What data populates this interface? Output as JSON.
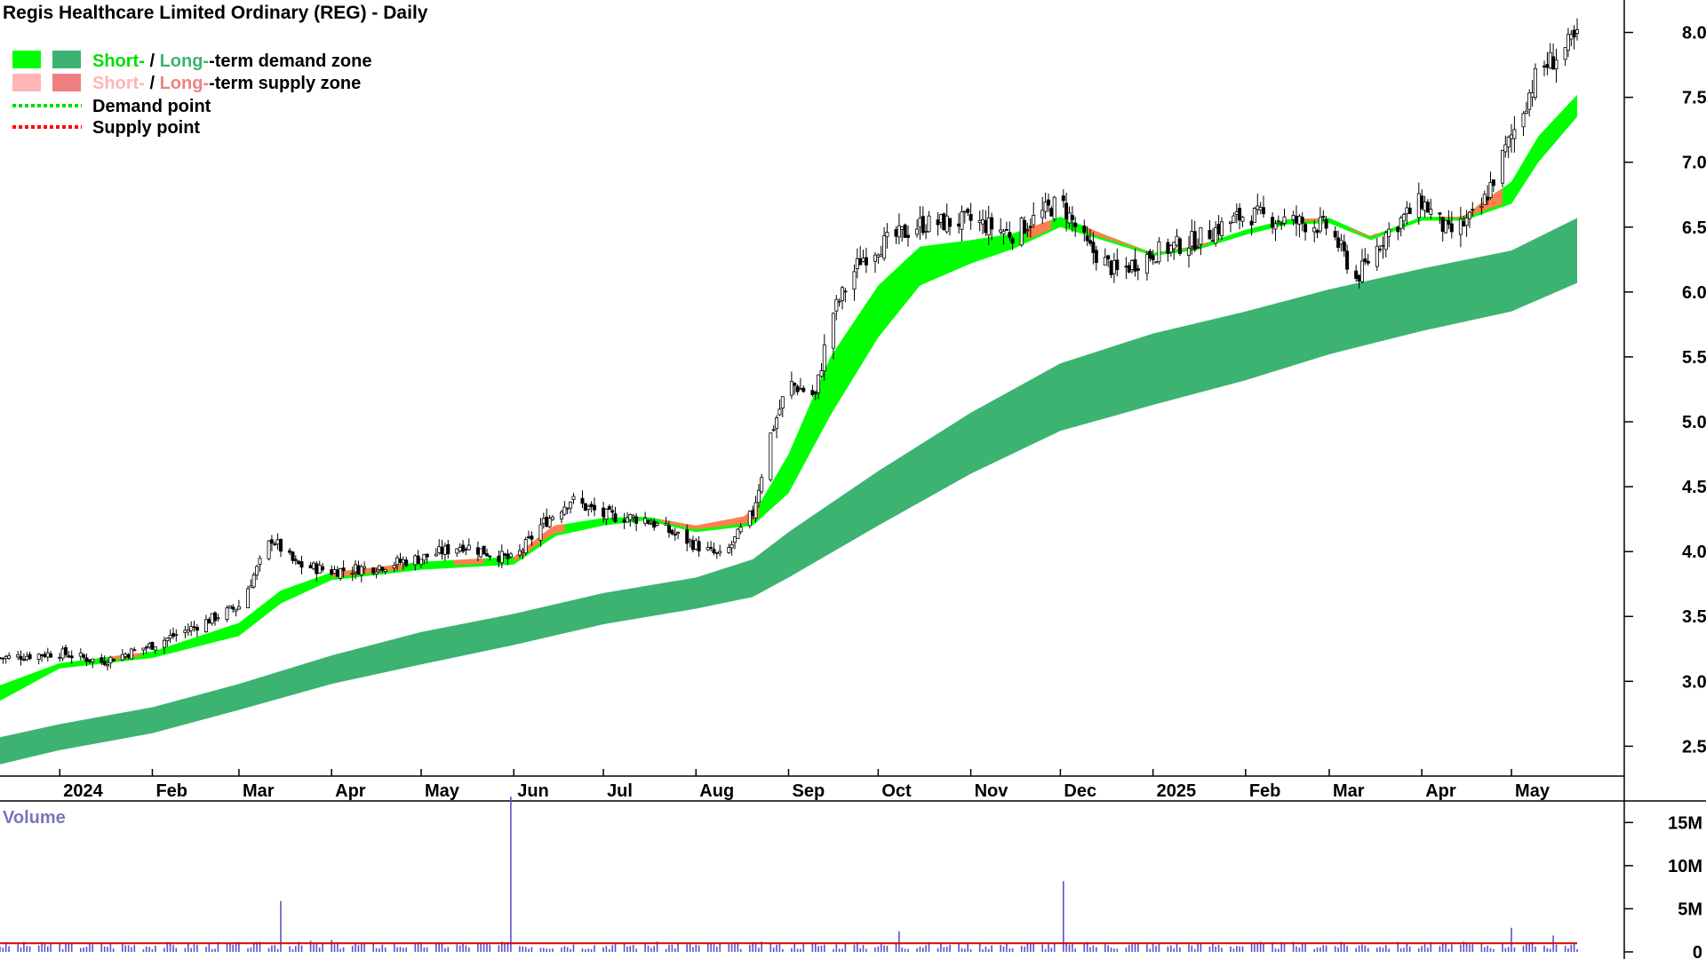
{
  "title": "Regis Healthcare Limited Ordinary (REG) - Daily",
  "legend": {
    "items": [
      {
        "short": "Short-",
        "sep": " / ",
        "long": "Long-",
        "rest": "-term demand zone",
        "short_color": "#00ff00",
        "long_color": "#3cb371"
      },
      {
        "short": "Short-",
        "sep": " / ",
        "long": "Long-",
        "rest": "-term supply zone",
        "short_color": "#ffb6b6",
        "long_color": "#f08080"
      },
      {
        "label": "Demand point",
        "color": "#00dd00"
      },
      {
        "label": "Supply point",
        "color": "#ff0000"
      }
    ]
  },
  "colors": {
    "short_demand": "#00ff00",
    "long_demand": "#3cb371",
    "short_supply": "#ff7f50",
    "candle": "#000000",
    "volume_bar": "#5555cc",
    "volume_avg": "#dd0000",
    "volume_label": "#7777bb"
  },
  "chart_data": {
    "type": "line",
    "price_axis": {
      "ticks": [
        "2.5",
        "3.0",
        "3.5",
        "4.0",
        "4.5",
        "5.0",
        "5.5",
        "6.0",
        "6.5",
        "7.0",
        "7.5",
        "8.0"
      ],
      "ylim": [
        2.27,
        8.25
      ]
    },
    "x_axis": {
      "labels": [
        "2024",
        "Feb",
        "Mar",
        "Apr",
        "May",
        "Jun",
        "Jul",
        "Aug",
        "Sep",
        "Oct",
        "Nov",
        "Dec",
        "2025",
        "Feb",
        "Mar",
        "Apr",
        "May"
      ],
      "dates": [
        "2024-01-01",
        "2024-02-01",
        "2024-03-01",
        "2024-04-01",
        "2024-05-01",
        "2024-06-01",
        "2024-07-01",
        "2024-08-01",
        "2024-09-01",
        "2024-10-01",
        "2024-11-01",
        "2024-12-01",
        "2025-01-01",
        "2025-02-01",
        "2025-03-01",
        "2025-04-01",
        "2025-05-01"
      ],
      "range": [
        "2023-12-12",
        "2025-05-23"
      ]
    },
    "price_close": [
      [
        "2023-12-12",
        3.18
      ],
      [
        "2024-01-01",
        3.22
      ],
      [
        "2024-01-15",
        3.15
      ],
      [
        "2024-02-01",
        3.28
      ],
      [
        "2024-02-15",
        3.42
      ],
      [
        "2024-03-01",
        3.58
      ],
      [
        "2024-03-12",
        4.1
      ],
      [
        "2024-03-20",
        3.9
      ],
      [
        "2024-04-01",
        3.85
      ],
      [
        "2024-04-15",
        3.88
      ],
      [
        "2024-05-01",
        3.95
      ],
      [
        "2024-05-15",
        4.05
      ],
      [
        "2024-06-01",
        3.93
      ],
      [
        "2024-06-10",
        4.2
      ],
      [
        "2024-06-20",
        4.4
      ],
      [
        "2024-07-01",
        4.28
      ],
      [
        "2024-07-15",
        4.25
      ],
      [
        "2024-08-01",
        4.05
      ],
      [
        "2024-08-10",
        3.95
      ],
      [
        "2024-08-20",
        4.3
      ],
      [
        "2024-08-26",
        4.9
      ],
      [
        "2024-09-01",
        5.3
      ],
      [
        "2024-09-10",
        5.2
      ],
      [
        "2024-09-15",
        5.8
      ],
      [
        "2024-09-25",
        6.25
      ],
      [
        "2024-10-01",
        6.35
      ],
      [
        "2024-10-15",
        6.52
      ],
      [
        "2024-11-01",
        6.55
      ],
      [
        "2024-11-15",
        6.45
      ],
      [
        "2024-12-01",
        6.7
      ],
      [
        "2024-12-10",
        6.35
      ],
      [
        "2024-12-20",
        6.15
      ],
      [
        "2025-01-01",
        6.3
      ],
      [
        "2025-01-15",
        6.4
      ],
      [
        "2025-02-01",
        6.6
      ],
      [
        "2025-02-15",
        6.55
      ],
      [
        "2025-03-01",
        6.5
      ],
      [
        "2025-03-10",
        6.1
      ],
      [
        "2025-03-20",
        6.45
      ],
      [
        "2025-04-01",
        6.7
      ],
      [
        "2025-04-10",
        6.45
      ],
      [
        "2025-04-20",
        6.6
      ],
      [
        "2025-05-01",
        7.2
      ],
      [
        "2025-05-10",
        7.7
      ],
      [
        "2025-05-18",
        7.85
      ],
      [
        "2025-05-23",
        7.95
      ]
    ],
    "short_term_demand_zone": {
      "upper": [
        [
          "2023-12-12",
          2.97
        ],
        [
          "2024-01-01",
          3.14
        ],
        [
          "2024-02-01",
          3.23
        ],
        [
          "2024-03-01",
          3.45
        ],
        [
          "2024-03-15",
          3.7
        ],
        [
          "2024-04-01",
          3.84
        ],
        [
          "2024-05-01",
          3.92
        ],
        [
          "2024-06-01",
          3.96
        ],
        [
          "2024-06-15",
          4.2
        ],
        [
          "2024-07-01",
          4.26
        ],
        [
          "2024-07-15",
          4.27
        ],
        [
          "2024-08-01",
          4.2
        ],
        [
          "2024-08-20",
          4.28
        ],
        [
          "2024-09-01",
          4.75
        ],
        [
          "2024-09-15",
          5.5
        ],
        [
          "2024-10-01",
          6.05
        ],
        [
          "2024-10-15",
          6.35
        ],
        [
          "2024-11-01",
          6.4
        ],
        [
          "2024-11-15",
          6.45
        ],
        [
          "2024-12-01",
          6.58
        ],
        [
          "2024-12-15",
          6.45
        ],
        [
          "2025-01-01",
          6.3
        ],
        [
          "2025-01-15",
          6.35
        ],
        [
          "2025-02-01",
          6.48
        ],
        [
          "2025-02-15",
          6.56
        ],
        [
          "2025-03-01",
          6.57
        ],
        [
          "2025-03-15",
          6.43
        ],
        [
          "2025-04-01",
          6.58
        ],
        [
          "2025-04-15",
          6.58
        ],
        [
          "2025-05-01",
          6.85
        ],
        [
          "2025-05-10",
          7.2
        ],
        [
          "2025-05-23",
          7.52
        ]
      ],
      "lower": [
        [
          "2023-12-12",
          2.85
        ],
        [
          "2024-01-01",
          3.1
        ],
        [
          "2024-02-01",
          3.18
        ],
        [
          "2024-03-01",
          3.35
        ],
        [
          "2024-03-15",
          3.6
        ],
        [
          "2024-04-01",
          3.78
        ],
        [
          "2024-05-01",
          3.86
        ],
        [
          "2024-06-01",
          3.9
        ],
        [
          "2024-06-15",
          4.12
        ],
        [
          "2024-07-01",
          4.2
        ],
        [
          "2024-07-15",
          4.24
        ],
        [
          "2024-08-01",
          4.15
        ],
        [
          "2024-08-20",
          4.2
        ],
        [
          "2024-09-01",
          4.45
        ],
        [
          "2024-09-15",
          5.05
        ],
        [
          "2024-10-01",
          5.65
        ],
        [
          "2024-10-15",
          6.05
        ],
        [
          "2024-11-01",
          6.22
        ],
        [
          "2024-11-15",
          6.33
        ],
        [
          "2024-12-01",
          6.5
        ],
        [
          "2024-12-15",
          6.4
        ],
        [
          "2025-01-01",
          6.28
        ],
        [
          "2025-01-15",
          6.32
        ],
        [
          "2025-02-01",
          6.44
        ],
        [
          "2025-02-15",
          6.52
        ],
        [
          "2025-03-01",
          6.53
        ],
        [
          "2025-03-15",
          6.4
        ],
        [
          "2025-04-01",
          6.55
        ],
        [
          "2025-04-15",
          6.55
        ],
        [
          "2025-05-01",
          6.68
        ],
        [
          "2025-05-10",
          7.0
        ],
        [
          "2025-05-23",
          7.35
        ]
      ]
    },
    "long_term_demand_zone": {
      "upper": [
        [
          "2023-12-12",
          2.57
        ],
        [
          "2024-01-01",
          2.67
        ],
        [
          "2024-02-01",
          2.8
        ],
        [
          "2024-03-01",
          2.98
        ],
        [
          "2024-04-01",
          3.2
        ],
        [
          "2024-05-01",
          3.38
        ],
        [
          "2024-06-01",
          3.52
        ],
        [
          "2024-07-01",
          3.68
        ],
        [
          "2024-08-01",
          3.8
        ],
        [
          "2024-08-20",
          3.94
        ],
        [
          "2024-09-01",
          4.15
        ],
        [
          "2024-10-01",
          4.62
        ],
        [
          "2024-11-01",
          5.07
        ],
        [
          "2024-12-01",
          5.45
        ],
        [
          "2025-01-01",
          5.68
        ],
        [
          "2025-02-01",
          5.85
        ],
        [
          "2025-03-01",
          6.02
        ],
        [
          "2025-04-01",
          6.18
        ],
        [
          "2025-05-01",
          6.32
        ],
        [
          "2025-05-23",
          6.57
        ]
      ],
      "lower": [
        [
          "2023-12-12",
          2.36
        ],
        [
          "2024-01-01",
          2.47
        ],
        [
          "2024-02-01",
          2.6
        ],
        [
          "2024-03-01",
          2.78
        ],
        [
          "2024-04-01",
          2.98
        ],
        [
          "2024-05-01",
          3.13
        ],
        [
          "2024-06-01",
          3.28
        ],
        [
          "2024-07-01",
          3.44
        ],
        [
          "2024-08-01",
          3.56
        ],
        [
          "2024-08-20",
          3.65
        ],
        [
          "2024-09-01",
          3.8
        ],
        [
          "2024-10-01",
          4.2
        ],
        [
          "2024-11-01",
          4.6
        ],
        [
          "2024-12-01",
          4.93
        ],
        [
          "2025-01-01",
          5.13
        ],
        [
          "2025-02-01",
          5.32
        ],
        [
          "2025-03-01",
          5.52
        ],
        [
          "2025-04-01",
          5.7
        ],
        [
          "2025-05-01",
          5.85
        ],
        [
          "2025-05-23",
          6.07
        ]
      ]
    },
    "short_term_supply_segments": [
      [
        "2024-01-18",
        "2024-01-28"
      ],
      [
        "2024-04-01",
        "2024-04-25"
      ],
      [
        "2024-05-12",
        "2024-05-22"
      ],
      [
        "2024-06-01",
        "2024-06-18"
      ],
      [
        "2024-07-20",
        "2024-08-22"
      ],
      [
        "2024-11-20",
        "2024-11-28"
      ],
      [
        "2024-12-10",
        "2025-01-20"
      ],
      [
        "2025-02-18",
        "2025-02-26"
      ],
      [
        "2025-03-08",
        "2025-03-18"
      ],
      [
        "2025-04-08",
        "2025-04-28"
      ]
    ],
    "volume": {
      "label": "Volume",
      "ticks": [
        "0",
        "5M",
        "10M",
        "15M"
      ],
      "ylim": [
        0,
        17500000
      ],
      "average_millions": 1.0,
      "spikes_millions": [
        [
          "2024-03-15",
          5.9
        ],
        [
          "2024-03-25",
          1.3
        ],
        [
          "2024-04-01",
          1.4
        ],
        [
          "2024-05-31",
          18.0
        ],
        [
          "2024-09-01",
          2.1
        ],
        [
          "2024-09-15",
          2.0
        ],
        [
          "2024-10-08",
          2.4
        ],
        [
          "2024-11-10",
          2.4
        ],
        [
          "2024-12-02",
          8.2
        ],
        [
          "2025-03-01",
          1.6
        ],
        [
          "2025-05-01",
          2.8
        ],
        [
          "2025-05-15",
          1.9
        ]
      ]
    }
  }
}
